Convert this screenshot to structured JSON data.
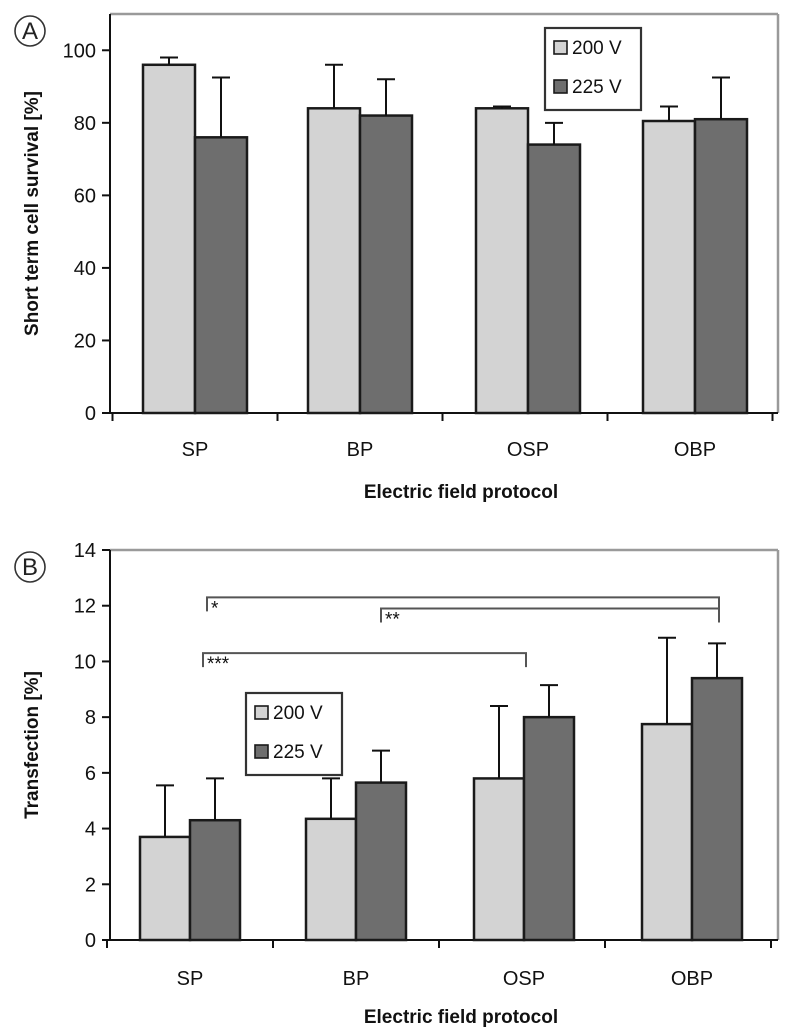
{
  "colors": {
    "series_200": "#d3d3d3",
    "series_225": "#6e6e6e",
    "bar_edge": "#1a1a1a",
    "frame": "#9a9a9a",
    "bracket": "#555555"
  },
  "chart_data": [
    {
      "panel_label": "A",
      "type": "bar",
      "title": "",
      "xlabel": "Electric field protocol",
      "ylabel": "Short term cell survival [%]",
      "categories": [
        "SP",
        "BP",
        "OSP",
        "OBP"
      ],
      "ylim": [
        0,
        110
      ],
      "yticks": [
        0,
        20,
        40,
        60,
        80,
        100
      ],
      "grid": false,
      "legend_position": "top-right",
      "series": [
        {
          "name": "200 V",
          "values": [
            96,
            84,
            84,
            80.5
          ],
          "errors": [
            2,
            12,
            0.5,
            4
          ]
        },
        {
          "name": "225 V",
          "values": [
            76,
            82,
            74,
            81
          ],
          "errors": [
            16.5,
            10,
            6,
            11.5
          ]
        }
      ],
      "significance": []
    },
    {
      "panel_label": "B",
      "type": "bar",
      "title": "",
      "xlabel": "Electric field protocol",
      "ylabel": "Transfection [%]",
      "categories": [
        "SP",
        "BP",
        "OSP",
        "OBP"
      ],
      "ylim": [
        0,
        14
      ],
      "yticks": [
        0,
        2,
        4,
        6,
        8,
        10,
        12,
        14
      ],
      "grid": false,
      "legend_position": "middle-left",
      "series": [
        {
          "name": "200 V",
          "values": [
            3.7,
            4.35,
            5.8,
            7.75
          ],
          "errors": [
            1.85,
            1.45,
            2.6,
            3.1
          ]
        },
        {
          "name": "225 V",
          "values": [
            4.3,
            5.65,
            8.0,
            9.4
          ],
          "errors": [
            1.5,
            1.15,
            1.15,
            1.25
          ]
        }
      ],
      "significance": [
        {
          "label": "*",
          "from": "SP",
          "to": "OBP",
          "level": 12.3
        },
        {
          "label": "**",
          "from": "BP",
          "to": "OBP",
          "level": 11.9
        },
        {
          "label": "***",
          "from": "SP",
          "to": "OSP",
          "level": 10.3
        }
      ]
    }
  ]
}
